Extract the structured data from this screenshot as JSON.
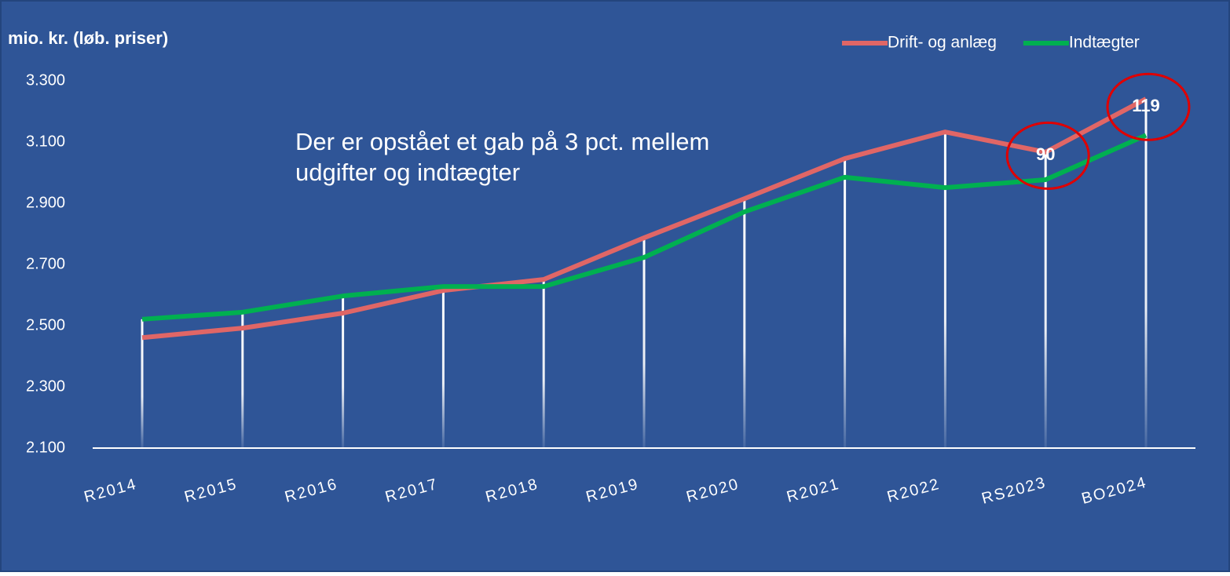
{
  "chart_data": {
    "type": "line",
    "y_axis_label": "mio. kr. (løb. priser)",
    "annotation_lines": [
      "Der er opstået et gab på 3 pct. mellem",
      "udgifter og indtægter"
    ],
    "categories": [
      "R2014",
      "R2015",
      "R2016",
      "R2017",
      "R2018",
      "R2019",
      "R2020",
      "R2021",
      "R2022",
      "RS2023",
      "BO2024"
    ],
    "series": [
      {
        "name": "Drift- og anlæg",
        "color": "#e06666",
        "values": [
          2461,
          2492,
          2541,
          2615,
          2651,
          2787,
          2915,
          3046,
          3133,
          3067,
          3241
        ]
      },
      {
        "name": "Indtægter",
        "color": "#00b050",
        "values": [
          2521,
          2544,
          2597,
          2628,
          2628,
          2723,
          2872,
          2985,
          2951,
          2977,
          3122
        ]
      }
    ],
    "gap_labels": [
      {
        "category": "RS2023",
        "value": 90
      },
      {
        "category": "BO2024",
        "value": 119
      }
    ],
    "gap_circle_color": "#e00000",
    "ylim": [
      2100,
      3300
    ],
    "yticks": [
      {
        "value": 2100,
        "label": "2.100"
      },
      {
        "value": 2300,
        "label": "2.300"
      },
      {
        "value": 2500,
        "label": "2.500"
      },
      {
        "value": 2700,
        "label": "2.700"
      },
      {
        "value": 2900,
        "label": "2.900"
      },
      {
        "value": 3100,
        "label": "3.100"
      },
      {
        "value": 3300,
        "label": "3.300"
      }
    ],
    "drop_lines": true,
    "legend": "top-right"
  }
}
